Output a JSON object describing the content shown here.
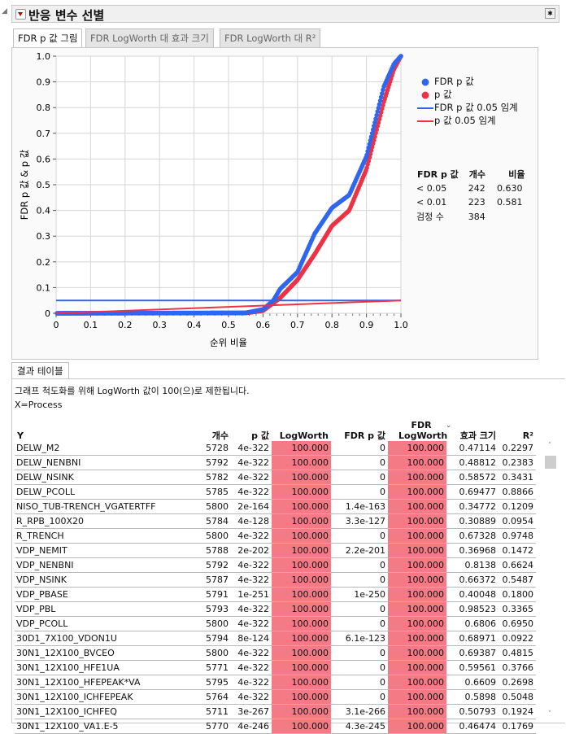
{
  "header": {
    "title": "반응 변수 선별"
  },
  "tabs": [
    {
      "label": "FDR p 값 그림"
    },
    {
      "label": "FDR LogWorth 대 효과 크기"
    },
    {
      "label": "FDR LogWorth 대 R²"
    }
  ],
  "legend": {
    "items": [
      "FDR p 값",
      "p 값",
      "FDR p 값 0.05 임계",
      "p 값 0.05 임계"
    ]
  },
  "colors": {
    "fdr": "#2f66f0",
    "p": "#ee3246",
    "highlight": "#f47a86"
  },
  "stats": {
    "headers": [
      "FDR p 값",
      "개수",
      "비율"
    ],
    "rows": [
      [
        "< 0.05",
        "242",
        "0.630"
      ],
      [
        "< 0.01",
        "223",
        "0.581"
      ],
      [
        "검정 수",
        "384",
        ""
      ]
    ]
  },
  "chart_data": {
    "type": "scatter",
    "xlabel": "순위 비율",
    "ylabel": "FDR p 값 & p 값",
    "xlim": [
      0,
      1
    ],
    "ylim": [
      0,
      1
    ],
    "xticks": [
      "0",
      "0.1",
      "0.2",
      "0.3",
      "0.4",
      "0.5",
      "0.6",
      "0.7",
      "0.8",
      "0.9",
      "1.0"
    ],
    "yticks": [
      "0",
      "0.1",
      "0.2",
      "0.3",
      "0.4",
      "0.5",
      "0.6",
      "0.7",
      "0.8",
      "0.9",
      "1.0"
    ],
    "grid": true,
    "n_points": 384,
    "series": [
      {
        "name": "FDR p 값",
        "points": [
          [
            0,
            0
          ],
          [
            0.55,
            0.002
          ],
          [
            0.6,
            0.015
          ],
          [
            0.63,
            0.05
          ],
          [
            0.65,
            0.095
          ],
          [
            0.7,
            0.16
          ],
          [
            0.75,
            0.31
          ],
          [
            0.8,
            0.41
          ],
          [
            0.85,
            0.46
          ],
          [
            0.9,
            0.61
          ],
          [
            0.95,
            0.88
          ],
          [
            0.98,
            0.97
          ],
          [
            1,
            1
          ]
        ]
      },
      {
        "name": "p 값",
        "points": [
          [
            0,
            0
          ],
          [
            0.55,
            0.001
          ],
          [
            0.6,
            0.01
          ],
          [
            0.65,
            0.06
          ],
          [
            0.7,
            0.13
          ],
          [
            0.75,
            0.23
          ],
          [
            0.8,
            0.34
          ],
          [
            0.85,
            0.4
          ],
          [
            0.9,
            0.56
          ],
          [
            0.95,
            0.82
          ],
          [
            0.98,
            0.95
          ],
          [
            1,
            1
          ]
        ]
      }
    ],
    "thresholds": [
      {
        "name": "FDR p 값 0.05 임계",
        "from": [
          0,
          0.05
        ],
        "to": [
          1,
          0.05
        ]
      },
      {
        "name": "p 값 0.05 임계",
        "from": [
          0,
          0
        ],
        "to": [
          1,
          0.05
        ]
      }
    ]
  },
  "results": {
    "tab": "결과 테이블",
    "note": "그래프 척도화를 위해 LogWorth 값이 100(으)로 제한됩니다.",
    "x_label": "X=Process",
    "columns": [
      "Y",
      "개수",
      "p 값",
      "LogWorth",
      "FDR p 값",
      "FDR LogWorth",
      "효과 크기",
      "R²"
    ],
    "rows": [
      [
        "DELW_M2",
        "5728",
        "4e-322",
        "100.000",
        "0",
        "100.000",
        "0.47114",
        "0.2297"
      ],
      [
        "DELW_NENBNI",
        "5792",
        "4e-322",
        "100.000",
        "0",
        "100.000",
        "0.48812",
        "0.2383"
      ],
      [
        "DELW_NSINK",
        "5782",
        "4e-322",
        "100.000",
        "0",
        "100.000",
        "0.58572",
        "0.3431"
      ],
      [
        "DELW_PCOLL",
        "5785",
        "4e-322",
        "100.000",
        "0",
        "100.000",
        "0.69477",
        "0.8866"
      ],
      [
        "NISO_TUB-TRENCH_VGATERTFF",
        "5800",
        "2e-164",
        "100.000",
        "1.4e-163",
        "100.000",
        "0.34772",
        "0.1209"
      ],
      [
        "R_RPB_100X20",
        "5784",
        "4e-128",
        "100.000",
        "3.3e-127",
        "100.000",
        "0.30889",
        "0.0954"
      ],
      [
        "R_TRENCH",
        "5800",
        "4e-322",
        "100.000",
        "0",
        "100.000",
        "0.67328",
        "0.9748"
      ],
      [
        "VDP_NEMIT",
        "5788",
        "2e-202",
        "100.000",
        "2.2e-201",
        "100.000",
        "0.36968",
        "0.1472"
      ],
      [
        "VDP_NENBNI",
        "5792",
        "4e-322",
        "100.000",
        "0",
        "100.000",
        "0.8138",
        "0.6624"
      ],
      [
        "VDP_NSINK",
        "5787",
        "4e-322",
        "100.000",
        "0",
        "100.000",
        "0.66372",
        "0.5487"
      ],
      [
        "VDP_PBASE",
        "5791",
        "1e-251",
        "100.000",
        "1e-250",
        "100.000",
        "0.40048",
        "0.1800"
      ],
      [
        "VDP_PBL",
        "5793",
        "4e-322",
        "100.000",
        "0",
        "100.000",
        "0.98523",
        "0.3365"
      ],
      [
        "VDP_PCOLL",
        "5800",
        "4e-322",
        "100.000",
        "0",
        "100.000",
        "0.6806",
        "0.6950"
      ],
      [
        "30D1_7X100_VDON1U",
        "5794",
        "8e-124",
        "100.000",
        "6.1e-123",
        "100.000",
        "0.68971",
        "0.0922"
      ],
      [
        "30N1_12X100_BVCEO",
        "5800",
        "4e-322",
        "100.000",
        "0",
        "100.000",
        "0.69387",
        "0.4815"
      ],
      [
        "30N1_12X100_HFE1UA",
        "5771",
        "4e-322",
        "100.000",
        "0",
        "100.000",
        "0.59561",
        "0.3766"
      ],
      [
        "30N1_12X100_HFEPEAK*VA",
        "5795",
        "4e-322",
        "100.000",
        "0",
        "100.000",
        "0.6609",
        "0.2698"
      ],
      [
        "30N1_12X100_ICHFEPEAK",
        "5764",
        "4e-322",
        "100.000",
        "0",
        "100.000",
        "0.5898",
        "0.5048"
      ],
      [
        "30N1_12X100_ICHFEQ",
        "5711",
        "3e-267",
        "100.000",
        "3.1e-266",
        "100.000",
        "0.50793",
        "0.1924"
      ],
      [
        "30N1_12X100_VA1.E-5",
        "5770",
        "4e-246",
        "100.000",
        "4.3e-245",
        "100.000",
        "0.46474",
        "0.1769"
      ]
    ]
  }
}
